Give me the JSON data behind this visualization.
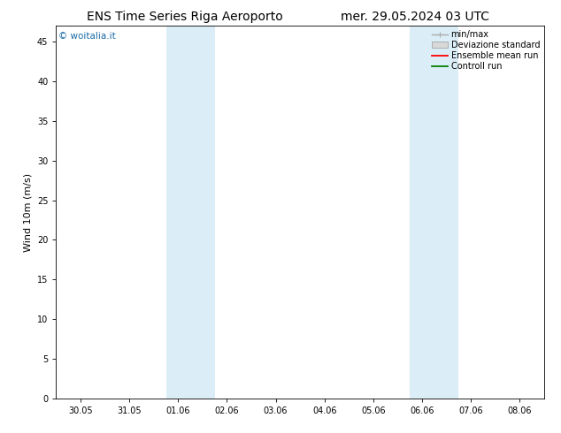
{
  "title_left": "ENS Time Series Riga Aeroporto",
  "title_right": "mer. 29.05.2024 03 UTC",
  "ylabel": "Wind 10m (m/s)",
  "ylim": [
    0,
    47
  ],
  "yticks": [
    0,
    5,
    10,
    15,
    20,
    25,
    30,
    35,
    40,
    45
  ],
  "xtick_labels": [
    "30.05",
    "31.05",
    "01.06",
    "02.06",
    "03.06",
    "04.06",
    "05.06",
    "06.06",
    "07.06",
    "08.06"
  ],
  "xtick_positions": [
    0,
    1,
    2,
    3,
    4,
    5,
    6,
    7,
    8,
    9
  ],
  "xlim": [
    -0.5,
    9.5
  ],
  "shaded_bands": [
    [
      1.75,
      2.25
    ],
    [
      2.25,
      2.75
    ],
    [
      6.75,
      7.25
    ],
    [
      7.25,
      7.75
    ]
  ],
  "band_color": "#dbeef7",
  "watermark": "© woitalia.it",
  "watermark_color": "#1a6ca8",
  "legend_labels": [
    "min/max",
    "Deviazione standard",
    "Ensemble mean run",
    "Controll run"
  ],
  "legend_line_color": "#aaaaaa",
  "legend_patch_color": "#d8d8d8",
  "legend_ens_color": "#ff0000",
  "legend_ctrl_color": "#008000",
  "background_color": "#ffffff",
  "title_fontsize": 10,
  "axis_label_fontsize": 8,
  "tick_fontsize": 7,
  "legend_fontsize": 7
}
